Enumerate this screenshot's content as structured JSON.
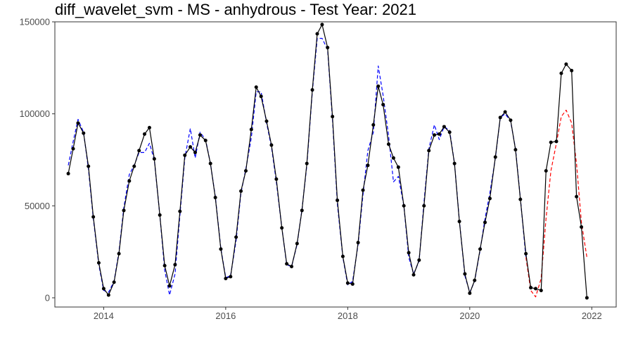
{
  "chart_data": {
    "type": "line",
    "title": "diff_wavelet_svm - MS - anhydrous - Test Year: 2021",
    "xlabel": "",
    "ylabel": "",
    "xlim": [
      2013.2,
      2022.4
    ],
    "ylim": [
      -5000,
      150000
    ],
    "x_ticks": [
      {
        "value": 2014,
        "label": "2014"
      },
      {
        "value": 2016,
        "label": "2016"
      },
      {
        "value": 2018,
        "label": "2018"
      },
      {
        "value": 2020,
        "label": "2020"
      },
      {
        "value": 2022,
        "label": "2022"
      }
    ],
    "y_ticks": [
      {
        "value": 0,
        "label": "0"
      },
      {
        "value": 50000,
        "label": "50000"
      },
      {
        "value": 100000,
        "label": "100000"
      },
      {
        "value": 150000,
        "label": "150000"
      }
    ],
    "grid": false,
    "legend": "none",
    "series": [
      {
        "color": "#000000",
        "style": "solid",
        "markers": true,
        "x": [
          2013.42,
          2013.5,
          2013.58,
          2013.67,
          2013.75,
          2013.83,
          2013.92,
          2014.0,
          2014.08,
          2014.17,
          2014.25,
          2014.33,
          2014.42,
          2014.5,
          2014.58,
          2014.67,
          2014.75,
          2014.83,
          2014.92,
          2015.0,
          2015.08,
          2015.17,
          2015.25,
          2015.33,
          2015.42,
          2015.5,
          2015.58,
          2015.67,
          2015.75,
          2015.83,
          2015.92,
          2016.0,
          2016.08,
          2016.17,
          2016.25,
          2016.33,
          2016.42,
          2016.5,
          2016.58,
          2016.67,
          2016.75,
          2016.83,
          2016.92,
          2017.0,
          2017.08,
          2017.17,
          2017.25,
          2017.33,
          2017.42,
          2017.5,
          2017.58,
          2017.67,
          2017.75,
          2017.83,
          2017.92,
          2018.0,
          2018.08,
          2018.17,
          2018.25,
          2018.33,
          2018.42,
          2018.5,
          2018.58,
          2018.67,
          2018.75,
          2018.83,
          2018.92,
          2019.0,
          2019.08,
          2019.17,
          2019.25,
          2019.33,
          2019.42,
          2019.5,
          2019.58,
          2019.67,
          2019.75,
          2019.83,
          2019.92,
          2020.0,
          2020.08,
          2020.17,
          2020.25,
          2020.33,
          2020.42,
          2020.5,
          2020.58,
          2020.67,
          2020.75,
          2020.83,
          2020.92,
          2021.0,
          2021.08,
          2021.17,
          2021.25,
          2021.33,
          2021.42,
          2021.5,
          2021.58,
          2021.67,
          2021.75,
          2021.83,
          2021.92
        ],
        "y": [
          67500,
          81000,
          95000,
          89500,
          71500,
          44000,
          19000,
          5000,
          1500,
          8500,
          24000,
          47500,
          63500,
          71500,
          80000,
          89000,
          92500,
          75500,
          45000,
          17500,
          6500,
          18000,
          47000,
          77500,
          82000,
          79000,
          88500,
          85500,
          73000,
          54500,
          26500,
          10500,
          11500,
          33000,
          58000,
          69000,
          91500,
          114500,
          109500,
          96000,
          83000,
          64500,
          38000,
          18500,
          17000,
          29500,
          47500,
          73000,
          113000,
          143500,
          148500,
          136000,
          98500,
          53000,
          22500,
          8000,
          7500,
          30000,
          58500,
          72000,
          94000,
          115000,
          105000,
          83500,
          76000,
          71000,
          50000,
          24500,
          12500,
          20500,
          50000,
          80000,
          88500,
          89000,
          93000,
          90000,
          73000,
          41500,
          13000,
          2500,
          9500,
          26500,
          41000,
          54000,
          76500,
          98000,
          101000,
          96500,
          80500,
          53500,
          24000,
          5500,
          5000,
          4000,
          69000,
          84500,
          85000,
          122000,
          127000,
          123500,
          55000,
          38500,
          0
        ]
      },
      {
        "color": "#0000ff",
        "style": "dashed",
        "markers": false,
        "x": [
          2013.42,
          2013.5,
          2013.58,
          2013.67,
          2013.75,
          2013.83,
          2013.92,
          2014.0,
          2014.08,
          2014.17,
          2014.25,
          2014.33,
          2014.42,
          2014.5,
          2014.58,
          2014.67,
          2014.75,
          2014.83,
          2014.92,
          2015.0,
          2015.08,
          2015.17,
          2015.25,
          2015.33,
          2015.42,
          2015.5,
          2015.58,
          2015.67,
          2015.75,
          2015.83,
          2015.92,
          2016.0,
          2016.08,
          2016.17,
          2016.25,
          2016.33,
          2016.42,
          2016.5,
          2016.58,
          2016.67,
          2016.75,
          2016.83,
          2016.92,
          2017.0,
          2017.08,
          2017.17,
          2017.25,
          2017.33,
          2017.42,
          2017.5,
          2017.58,
          2017.67,
          2017.75,
          2017.83,
          2017.92,
          2018.0,
          2018.08,
          2018.17,
          2018.25,
          2018.33,
          2018.42,
          2018.5,
          2018.58,
          2018.67,
          2018.75,
          2018.83,
          2018.92,
          2019.0,
          2019.08,
          2019.17,
          2019.25,
          2019.33,
          2019.42,
          2019.5,
          2019.58,
          2019.67,
          2019.75,
          2019.83,
          2019.92,
          2020.0,
          2020.08,
          2020.17,
          2020.25,
          2020.33,
          2020.42,
          2020.5,
          2020.58,
          2020.67,
          2020.75,
          2020.83,
          2020.92
        ],
        "y": [
          72000,
          85000,
          97000,
          90000,
          70000,
          43000,
          18000,
          4000,
          3000,
          9000,
          25000,
          49000,
          67000,
          72000,
          79000,
          79000,
          84000,
          75000,
          45000,
          15000,
          1500,
          13000,
          45000,
          76000,
          92000,
          76000,
          90000,
          86000,
          73000,
          55000,
          27000,
          11000,
          12000,
          31000,
          57000,
          70000,
          87000,
          112000,
          112000,
          95000,
          82000,
          63000,
          38000,
          18000,
          17000,
          29000,
          48000,
          72000,
          112000,
          141000,
          141000,
          135000,
          97000,
          51000,
          22000,
          7000,
          9000,
          29000,
          56000,
          80000,
          90000,
          126000,
          110000,
          88000,
          63000,
          66000,
          50000,
          22000,
          13000,
          20000,
          52000,
          81000,
          94000,
          86000,
          93000,
          91000,
          73000,
          42000,
          12000,
          3000,
          9000,
          26000,
          43000,
          57000,
          76000,
          98000,
          100000,
          96000,
          81000,
          54000,
          22000
        ]
      },
      {
        "color": "#ff0000",
        "style": "dashed",
        "markers": false,
        "x": [
          2020.92,
          2021.0,
          2021.08,
          2021.17,
          2021.25,
          2021.33,
          2021.42,
          2021.5,
          2021.58,
          2021.67,
          2021.75,
          2021.83,
          2021.92
        ],
        "y": [
          22000,
          4000,
          500,
          10500,
          43000,
          69000,
          84000,
          98500,
          102000,
          95000,
          73000,
          41000,
          22000
        ]
      }
    ]
  }
}
